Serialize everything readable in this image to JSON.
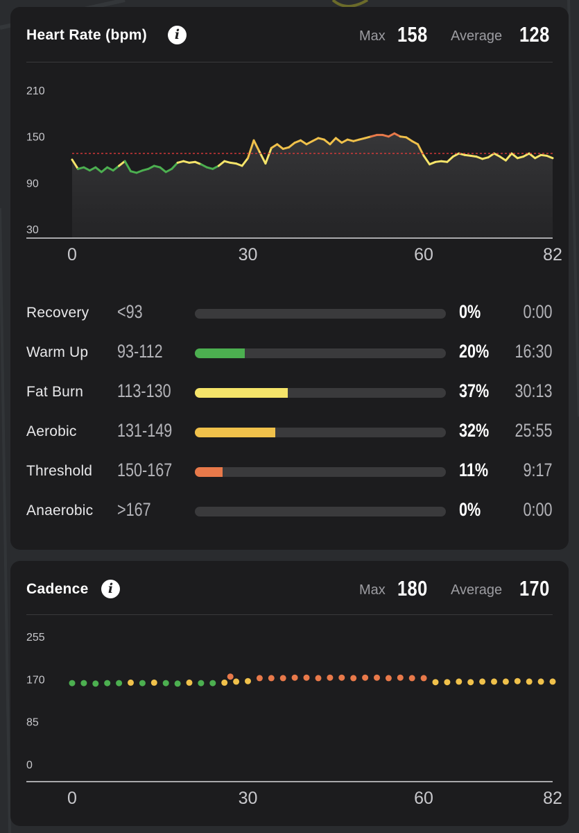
{
  "heart_rate": {
    "title": "Heart Rate (bpm)",
    "info_icon": "info-icon",
    "max_label": "Max",
    "max_value": "158",
    "average_label": "Average",
    "average_value": "128",
    "zones": [
      {
        "name": "Recovery",
        "range": "<93",
        "percent": "0%",
        "fraction": 0.0,
        "time": "0:00",
        "color": "#3a3a3c"
      },
      {
        "name": "Warm Up",
        "range": "93-112",
        "percent": "20%",
        "fraction": 0.2,
        "time": "16:30",
        "color": "#4caf50"
      },
      {
        "name": "Fat Burn",
        "range": "113-130",
        "percent": "37%",
        "fraction": 0.37,
        "time": "30:13",
        "color": "#f5e46a"
      },
      {
        "name": "Aerobic",
        "range": "131-149",
        "percent": "32%",
        "fraction": 0.32,
        "time": "25:55",
        "color": "#f0c14b"
      },
      {
        "name": "Threshold",
        "range": "150-167",
        "percent": "11%",
        "fraction": 0.11,
        "time": "9:17",
        "color": "#e8794a"
      },
      {
        "name": "Anaerobic",
        "range": ">167",
        "percent": "0%",
        "fraction": 0.0,
        "time": "0:00",
        "color": "#3a3a3c"
      }
    ]
  },
  "cadence": {
    "title": "Cadence",
    "info_icon": "info-icon",
    "max_label": "Max",
    "max_value": "180",
    "average_label": "Average",
    "average_value": "170"
  },
  "chart_data": [
    {
      "type": "line",
      "title": "Heart Rate (bpm)",
      "xlabel": "",
      "ylabel": "",
      "x_ticks": [
        "0",
        "30",
        "60",
        "82"
      ],
      "y_ticks": [
        "30",
        "90",
        "150",
        "210"
      ],
      "xlim": [
        0,
        82
      ],
      "ylim": [
        30,
        210
      ],
      "reference_line": 128,
      "grid": false,
      "zone_colors": {
        "warm_up": "#4caf50",
        "fat_burn": "#f5e46a",
        "aerobic": "#f0c14b",
        "threshold": "#e8794a"
      },
      "x": [
        0,
        1,
        2,
        3,
        4,
        5,
        6,
        7,
        8,
        9,
        10,
        11,
        12,
        13,
        14,
        15,
        16,
        17,
        18,
        19,
        20,
        21,
        22,
        23,
        24,
        25,
        26,
        27,
        28,
        29,
        30,
        31,
        32,
        33,
        34,
        35,
        36,
        37,
        38,
        39,
        40,
        41,
        42,
        43,
        44,
        45,
        46,
        47,
        48,
        49,
        50,
        51,
        52,
        53,
        54,
        55,
        56,
        57,
        58,
        59,
        60,
        61,
        62,
        63,
        64,
        65,
        66,
        67,
        68,
        69,
        70,
        71,
        72,
        73,
        74,
        75,
        76,
        77,
        78,
        79,
        80,
        81,
        82
      ],
      "y": [
        120,
        108,
        110,
        106,
        110,
        104,
        110,
        106,
        112,
        118,
        105,
        103,
        106,
        108,
        112,
        110,
        104,
        108,
        116,
        118,
        116,
        117,
        114,
        110,
        108,
        112,
        118,
        116,
        115,
        112,
        122,
        145,
        130,
        115,
        135,
        140,
        134,
        136,
        142,
        145,
        140,
        144,
        148,
        146,
        140,
        148,
        142,
        146,
        144,
        146,
        148,
        150,
        152,
        152,
        150,
        154,
        150,
        149,
        144,
        140,
        125,
        114,
        117,
        118,
        117,
        124,
        128,
        126,
        125,
        124,
        121,
        123,
        128,
        124,
        119,
        128,
        122,
        124,
        128,
        122,
        126,
        125,
        122
      ]
    },
    {
      "type": "scatter",
      "title": "Cadence",
      "xlabel": "",
      "ylabel": "",
      "x_ticks": [
        "0",
        "30",
        "60",
        "82"
      ],
      "y_ticks": [
        "0",
        "85",
        "170",
        "255"
      ],
      "xlim": [
        0,
        82
      ],
      "ylim": [
        0,
        255
      ],
      "grid": false,
      "series_colors": {
        "low": "#4caf50",
        "mid": "#f0c14b",
        "high": "#e8794a"
      },
      "x": [
        0,
        2,
        4,
        6,
        8,
        10,
        12,
        14,
        16,
        18,
        20,
        22,
        24,
        26,
        27,
        28,
        30,
        32,
        34,
        36,
        38,
        40,
        42,
        44,
        46,
        48,
        50,
        52,
        54,
        56,
        58,
        60,
        62,
        64,
        66,
        68,
        70,
        72,
        74,
        76,
        78,
        80,
        82
      ],
      "y": [
        162,
        162,
        161,
        162,
        162,
        163,
        162,
        163,
        162,
        161,
        163,
        162,
        162,
        163,
        175,
        165,
        166,
        172,
        172,
        172,
        173,
        173,
        172,
        173,
        173,
        172,
        173,
        173,
        172,
        173,
        172,
        172,
        164,
        164,
        165,
        164,
        165,
        165,
        165,
        166,
        165,
        165,
        165
      ]
    }
  ]
}
